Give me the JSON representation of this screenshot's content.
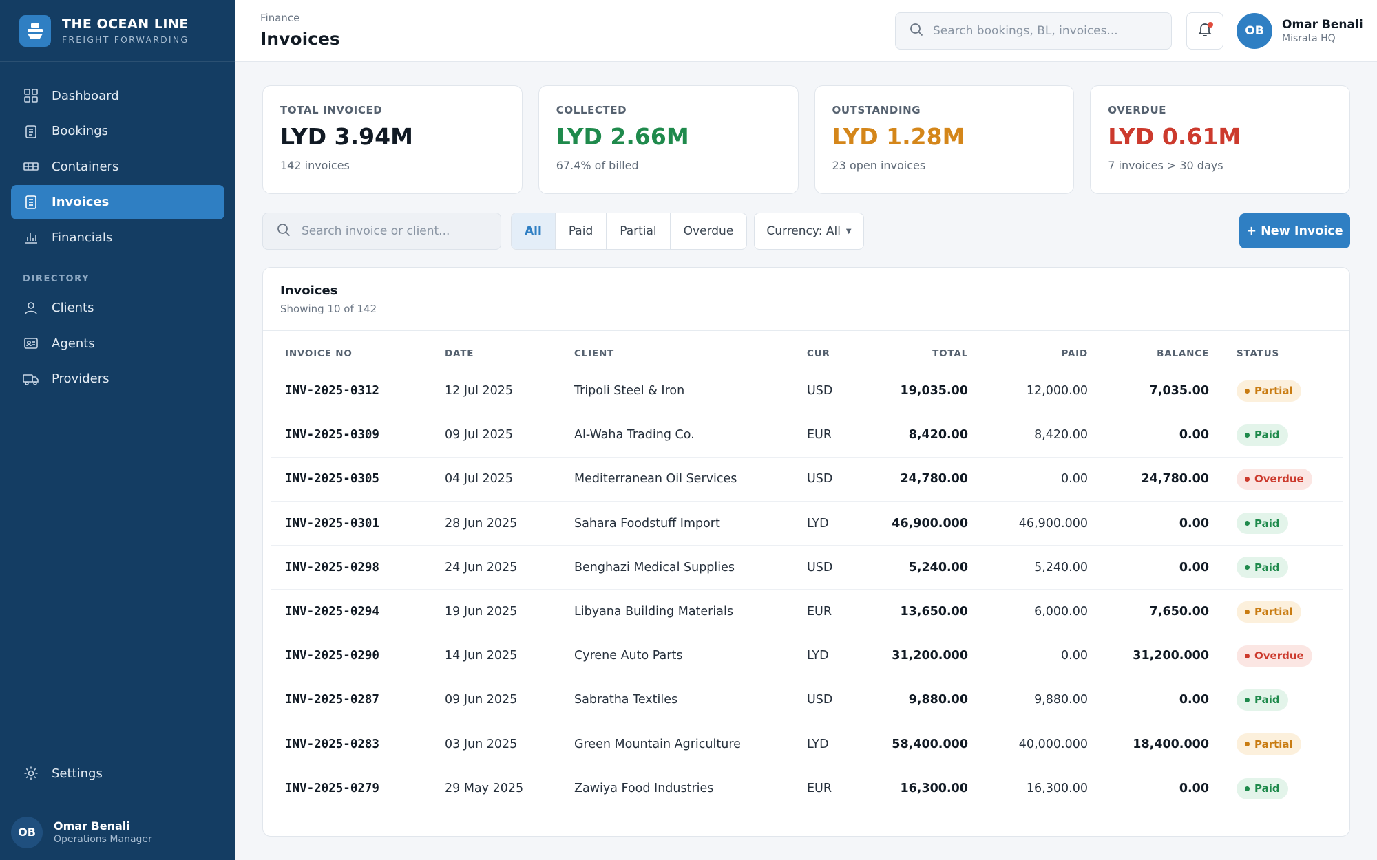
{
  "brand": {
    "title": "THE OCEAN LINE",
    "subtitle": "FREIGHT FORWARDING"
  },
  "nav": {
    "items": [
      {
        "label": "Dashboard",
        "icon": "grid-icon"
      },
      {
        "label": "Bookings",
        "icon": "clipboard-icon"
      },
      {
        "label": "Containers",
        "icon": "container-icon"
      },
      {
        "label": "Invoices",
        "icon": "invoice-icon",
        "active": true
      },
      {
        "label": "Financials",
        "icon": "bar-chart-icon"
      }
    ],
    "section_label": "DIRECTORY",
    "directory": [
      {
        "label": "Clients",
        "icon": "person-icon"
      },
      {
        "label": "Agents",
        "icon": "id-card-icon"
      },
      {
        "label": "Providers",
        "icon": "truck-icon"
      }
    ],
    "settings_label": "Settings"
  },
  "sidebar_user": {
    "initials": "OB",
    "name": "Omar Benali",
    "role": "Operations Manager"
  },
  "header": {
    "breadcrumb": "Finance",
    "title": "Invoices",
    "search_placeholder": "Search bookings, BL, invoices...",
    "user": {
      "initials": "OB",
      "name": "Omar Benali",
      "location": "Misrata HQ"
    }
  },
  "kpis": [
    {
      "label": "TOTAL INVOICED",
      "value": "LYD 3.94M",
      "sub": "142 invoices",
      "color": "#111a24"
    },
    {
      "label": "COLLECTED",
      "value": "LYD 2.66M",
      "sub": "67.4% of billed",
      "color": "#1f8a4c"
    },
    {
      "label": "OUTSTANDING",
      "value": "LYD 1.28M",
      "sub": "23 open invoices",
      "color": "#d4861a"
    },
    {
      "label": "OVERDUE",
      "value": "LYD 0.61M",
      "sub": "7 invoices > 30 days",
      "color": "#cc3a2d"
    }
  ],
  "filters": {
    "search_placeholder": "Search invoice or client...",
    "tabs": [
      "All",
      "Paid",
      "Partial",
      "Overdue"
    ],
    "active_tab": "All",
    "currency_label": "Currency: All",
    "new_button": "+ New Invoice"
  },
  "table": {
    "title": "Invoices",
    "subtitle": "Showing 10 of 142",
    "columns": [
      "INVOICE NO",
      "DATE",
      "CLIENT",
      "CUR",
      "TOTAL",
      "PAID",
      "BALANCE",
      "STATUS"
    ],
    "rows": [
      {
        "no": "INV-2025-0312",
        "date": "12 Jul 2025",
        "client": "Tripoli Steel & Iron",
        "cur": "USD",
        "total": "19,035.00",
        "paid": "12,000.00",
        "balance": "7,035.00",
        "status": "Partial"
      },
      {
        "no": "INV-2025-0309",
        "date": "09 Jul 2025",
        "client": "Al-Waha Trading Co.",
        "cur": "EUR",
        "total": "8,420.00",
        "paid": "8,420.00",
        "balance": "0.00",
        "status": "Paid"
      },
      {
        "no": "INV-2025-0305",
        "date": "04 Jul 2025",
        "client": "Mediterranean Oil Services",
        "cur": "USD",
        "total": "24,780.00",
        "paid": "0.00",
        "balance": "24,780.00",
        "status": "Overdue"
      },
      {
        "no": "INV-2025-0301",
        "date": "28 Jun 2025",
        "client": "Sahara Foodstuff Import",
        "cur": "LYD",
        "total": "46,900.000",
        "paid": "46,900.000",
        "balance": "0.00",
        "status": "Paid"
      },
      {
        "no": "INV-2025-0298",
        "date": "24 Jun 2025",
        "client": "Benghazi Medical Supplies",
        "cur": "USD",
        "total": "5,240.00",
        "paid": "5,240.00",
        "balance": "0.00",
        "status": "Paid"
      },
      {
        "no": "INV-2025-0294",
        "date": "19 Jun 2025",
        "client": "Libyana Building Materials",
        "cur": "EUR",
        "total": "13,650.00",
        "paid": "6,000.00",
        "balance": "7,650.00",
        "status": "Partial"
      },
      {
        "no": "INV-2025-0290",
        "date": "14 Jun 2025",
        "client": "Cyrene Auto Parts",
        "cur": "LYD",
        "total": "31,200.000",
        "paid": "0.00",
        "balance": "31,200.000",
        "status": "Overdue"
      },
      {
        "no": "INV-2025-0287",
        "date": "09 Jun 2025",
        "client": "Sabratha Textiles",
        "cur": "USD",
        "total": "9,880.00",
        "paid": "9,880.00",
        "balance": "0.00",
        "status": "Paid"
      },
      {
        "no": "INV-2025-0283",
        "date": "03 Jun 2025",
        "client": "Green Mountain Agriculture",
        "cur": "LYD",
        "total": "58,400.000",
        "paid": "40,000.000",
        "balance": "18,400.000",
        "status": "Partial"
      },
      {
        "no": "INV-2025-0279",
        "date": "29 May 2025",
        "client": "Zawiya Food Industries",
        "cur": "EUR",
        "total": "16,300.00",
        "paid": "16,300.00",
        "balance": "0.00",
        "status": "Paid"
      }
    ]
  },
  "status_colors": {
    "Paid": {
      "bg": "#e3f4ea",
      "fg": "#1f8a4c"
    },
    "Partial": {
      "bg": "#fcf0dc",
      "fg": "#c97c12"
    },
    "Overdue": {
      "bg": "#fbe6e3",
      "fg": "#cc3a2d"
    }
  }
}
